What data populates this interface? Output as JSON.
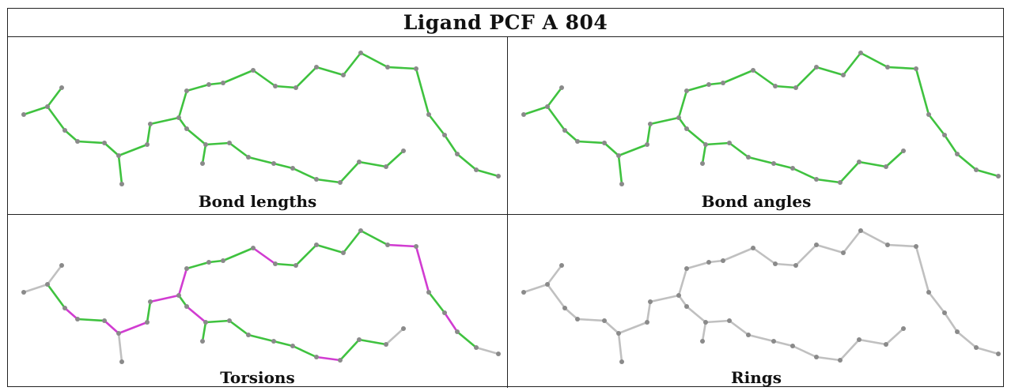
{
  "title": "Ligand PCF A 804",
  "panels": [
    {
      "caption": "Bond lengths",
      "style": "green"
    },
    {
      "caption": "Bond angles",
      "style": "green"
    },
    {
      "caption": "Torsions",
      "style": "torsion"
    },
    {
      "caption": "Rings",
      "style": "gray"
    }
  ],
  "colors": {
    "bond_green": "#3fc23f",
    "bond_magenta": "#d13cd1",
    "bond_gray": "#c0c0c0",
    "atom": "#8a8a8a",
    "border": "#222222"
  }
}
